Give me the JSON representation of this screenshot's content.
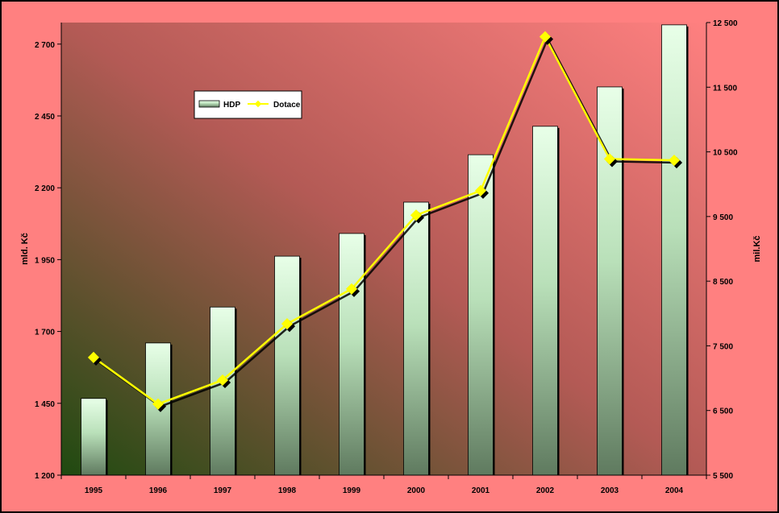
{
  "chart_data": {
    "type": "bar+line",
    "categories": [
      "1995",
      "1996",
      "1997",
      "1998",
      "1999",
      "2000",
      "2001",
      "2002",
      "2003",
      "2004"
    ],
    "series": [
      {
        "name": "HDP",
        "type": "bar",
        "axis": "left",
        "values": [
          1467,
          1660,
          1785,
          1962,
          2041,
          2150,
          2315,
          2414,
          2551,
          2767
        ]
      },
      {
        "name": "Dotace",
        "type": "line",
        "axis": "right",
        "values": [
          7320,
          6600,
          6970,
          7840,
          8380,
          9520,
          9900,
          12280,
          10390,
          10370
        ]
      }
    ],
    "ylabel": "mld. Kč",
    "y2label": "mil.Kč",
    "ylim": [
      1200,
      2775
    ],
    "y2lim": [
      5500,
      12500
    ],
    "yticks": [
      "1 200",
      "1 450",
      "1 700",
      "1 950",
      "2 200",
      "2 450",
      "2 700"
    ],
    "yticks_values": [
      1200,
      1450,
      1700,
      1950,
      2200,
      2450,
      2700
    ],
    "y2ticks": [
      "5 500",
      "6 500",
      "7 500",
      "8 500",
      "9 500",
      "10 500",
      "11 500",
      "12 500"
    ],
    "y2ticks_values": [
      5500,
      6500,
      7500,
      8500,
      9500,
      10500,
      11500,
      12500
    ],
    "legend_position": "top-left",
    "colors": {
      "page_background": "#ff8080",
      "line": "#ffff00",
      "bar_top": "#e8ffe8",
      "bar_bottom": "#5f7a5f",
      "plot_dark": "#1f4a10",
      "plot_light": "#ff8080"
    }
  }
}
